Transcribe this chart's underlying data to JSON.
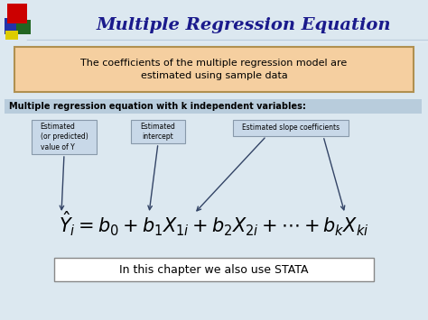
{
  "title": "Multiple Regression Equation",
  "title_color": "#1a1a8c",
  "slide_bg": "#dce8f0",
  "box1_text": "The coefficients of the multiple regression model are\nestimated using sample data",
  "box1_bg": "#f5cfa0",
  "box1_border": "#b09050",
  "box2_label": "Multiple regression equation with k independent variables:",
  "box2_bg": "#b8ccdc",
  "annotation1": "Estimated\n(or predicted)\nvalue of Y",
  "annotation2": "Estimated\nintercept",
  "annotation3": "Estimated slope coefficients",
  "ann_bg": "#c8d8e8",
  "ann_border": "#8899aa",
  "bottom_box_text": "In this chapter we also use STATA",
  "bottom_box_border": "#888888",
  "bottom_box_bg": "#ffffff",
  "arrow_color": "#334466",
  "red_sq": "#cc0000",
  "blue_sq": "#2233aa",
  "green_sq": "#226622",
  "yellow_sq": "#ddcc00",
  "line_color": "#c0d0e0"
}
